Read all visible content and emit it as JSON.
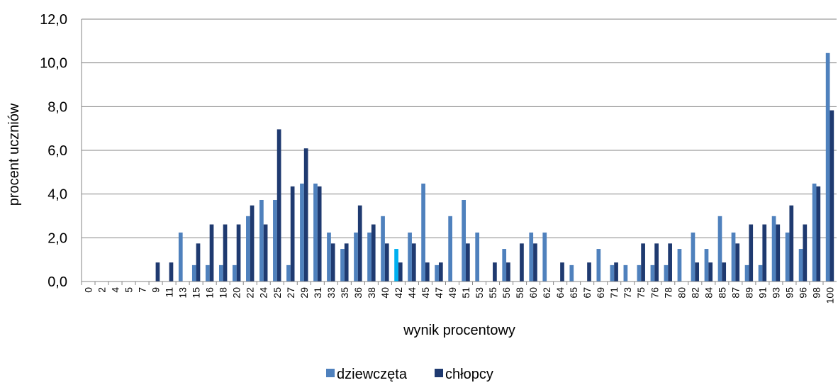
{
  "chart_data": {
    "type": "bar",
    "title": "",
    "xlabel": "wynik procentowy",
    "ylabel": "procent uczniów",
    "ylim": [
      0,
      12
    ],
    "yticks": [
      "0,0",
      "2,0",
      "4,0",
      "6,0",
      "8,0",
      "10,0",
      "12,0"
    ],
    "grid": true,
    "legend_position": "bottom",
    "categories": [
      "0",
      "2",
      "4",
      "5",
      "7",
      "9",
      "11",
      "13",
      "15",
      "16",
      "18",
      "20",
      "22",
      "24",
      "25",
      "27",
      "29",
      "31",
      "33",
      "35",
      "36",
      "38",
      "40",
      "42",
      "44",
      "45",
      "47",
      "49",
      "51",
      "53",
      "55",
      "56",
      "58",
      "60",
      "62",
      "64",
      "65",
      "67",
      "69",
      "71",
      "73",
      "75",
      "76",
      "78",
      "80",
      "82",
      "84",
      "85",
      "87",
      "89",
      "91",
      "93",
      "95",
      "96",
      "98",
      "100"
    ],
    "series": [
      {
        "name": "dziewczęta",
        "color": "#4F81BD",
        "values": [
          0,
          0,
          0,
          0,
          0,
          0,
          0,
          2.24,
          0.75,
          0.75,
          0.75,
          0.75,
          2.99,
          3.73,
          3.73,
          0.75,
          4.48,
          4.48,
          2.24,
          1.49,
          2.24,
          2.24,
          2.99,
          1.49,
          2.24,
          4.48,
          0.75,
          2.99,
          3.73,
          2.24,
          0,
          1.49,
          0,
          2.24,
          2.24,
          0,
          0.75,
          0,
          1.49,
          0.75,
          0.75,
          0.75,
          0.75,
          0.75,
          1.49,
          2.24,
          1.49,
          2.99,
          2.24,
          0.75,
          0.75,
          2.99,
          2.24,
          1.49,
          4.48,
          10.45
        ]
      },
      {
        "name": "chłopcy",
        "color": "#1F3A70",
        "values": [
          0,
          0,
          0,
          0,
          0,
          0.87,
          0.87,
          0,
          1.74,
          2.61,
          2.61,
          2.61,
          3.48,
          2.61,
          6.96,
          4.35,
          6.09,
          4.35,
          1.74,
          1.74,
          3.48,
          2.61,
          1.74,
          0.87,
          1.74,
          0.87,
          0.87,
          0,
          1.74,
          0,
          0.87,
          0.87,
          1.74,
          1.74,
          0,
          0.87,
          0,
          0.87,
          0,
          0.87,
          0,
          1.74,
          1.74,
          1.74,
          0,
          0.87,
          0.87,
          0.87,
          1.74,
          2.61,
          2.61,
          2.61,
          3.48,
          2.61,
          4.35,
          7.83
        ]
      }
    ],
    "highlight": {
      "category_index": 23,
      "series_index": 0,
      "color": "#00B0F0"
    }
  }
}
